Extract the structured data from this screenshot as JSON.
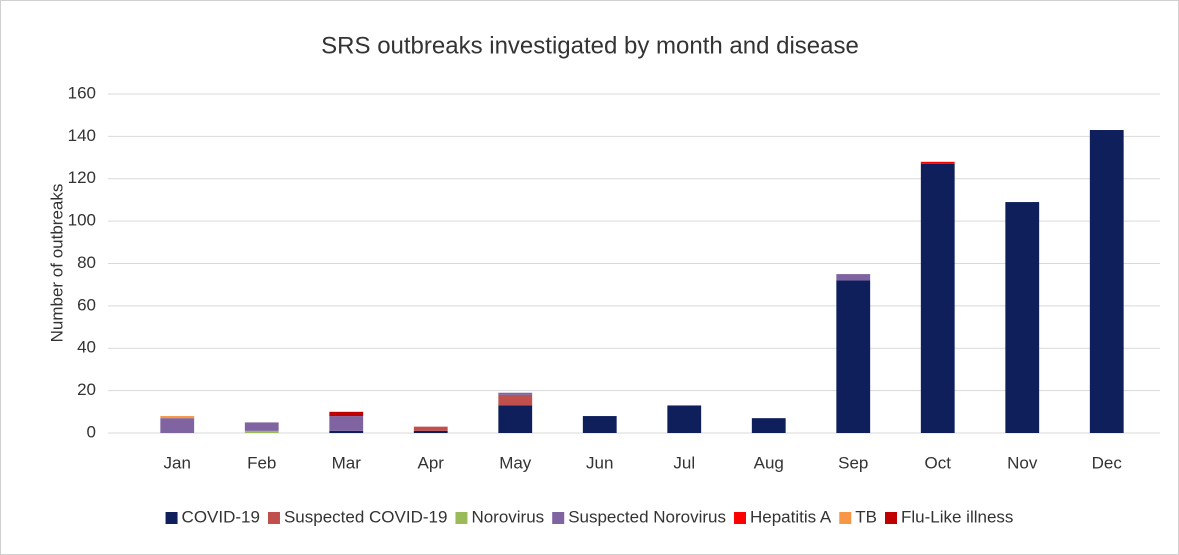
{
  "chart_data": {
    "type": "stacked_bar",
    "title": "SRS outbreaks investigated by month and disease",
    "y_label": "Number of outbreaks",
    "categories": [
      "Jan",
      "Feb",
      "Mar",
      "Apr",
      "May",
      "Jun",
      "Jul",
      "Aug",
      "Sep",
      "Oct",
      "Nov",
      "Dec"
    ],
    "series": [
      {
        "name": "COVID-19",
        "color": "#0f1f5c",
        "values": [
          0,
          0,
          1,
          1,
          13,
          8,
          13,
          7,
          72,
          127,
          109,
          143
        ]
      },
      {
        "name": "Suspected COVID-19",
        "color": "#c0504d",
        "values": [
          0,
          0,
          0,
          2,
          5,
          0,
          0,
          0,
          0,
          0,
          0,
          0
        ]
      },
      {
        "name": "Norovirus",
        "color": "#9bbb59",
        "values": [
          0,
          1,
          0,
          0,
          0,
          0,
          0,
          0,
          0,
          0,
          0,
          0
        ]
      },
      {
        "name": "Suspected Norovirus",
        "color": "#8064a2",
        "values": [
          7,
          4,
          7,
          0,
          1,
          0,
          0,
          0,
          3,
          0,
          0,
          0
        ]
      },
      {
        "name": "Hepatitis A",
        "color": "#ff0000",
        "values": [
          0,
          0,
          0,
          0,
          0,
          0,
          0,
          0,
          0,
          1,
          0,
          0
        ]
      },
      {
        "name": "TB",
        "color": "#f79646",
        "values": [
          1,
          0,
          0,
          0,
          0,
          0,
          0,
          0,
          0,
          0,
          0,
          0
        ]
      },
      {
        "name": "Flu-Like illness",
        "color": "#c00000",
        "values": [
          0,
          0,
          2,
          0,
          0,
          0,
          0,
          0,
          0,
          0,
          0,
          0
        ]
      }
    ],
    "ylim": [
      0,
      160
    ],
    "yticks": [
      0,
      20,
      40,
      60,
      80,
      100,
      120,
      140,
      160
    ],
    "grid": true,
    "legend": "bottom"
  }
}
